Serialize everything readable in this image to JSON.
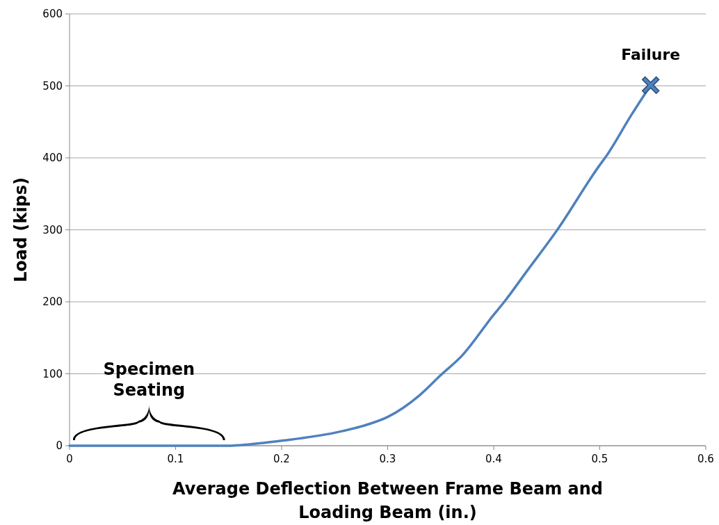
{
  "chart_data": {
    "type": "line",
    "xlabel": "Average Deflection Between Frame Beam and Loading Beam (in.)",
    "ylabel": "Load (kips)",
    "xlim": [
      0,
      0.6
    ],
    "xticks": [
      0,
      0.1,
      0.2,
      0.3,
      0.4,
      0.5,
      0.6
    ],
    "ylim": [
      0,
      600
    ],
    "yticks": [
      0,
      100,
      200,
      300,
      400,
      500,
      600
    ],
    "grid": "y",
    "marker": "none",
    "line_style": "solid",
    "series": [
      {
        "color": "#4f81bd",
        "x": [
          0,
          0.05,
          0.1,
          0.15,
          0.17,
          0.2,
          0.25,
          0.28,
          0.3,
          0.33,
          0.35,
          0.37,
          0.4,
          0.41,
          0.43,
          0.46,
          0.5,
          0.505,
          0.53,
          0.548
        ],
        "values": [
          0,
          0,
          0,
          0,
          2,
          7,
          18,
          29,
          40,
          70,
          98,
          125,
          182,
          200,
          240,
          300,
          390,
          400,
          460,
          501
        ]
      },
      {
        "type": "scatter",
        "marker": "cross",
        "color": "#4f81bd",
        "x": [
          0.548
        ],
        "values": [
          501
        ]
      }
    ],
    "annotations": [
      {
        "text": "Failure",
        "x": 0.548,
        "y": 501
      },
      {
        "text": "Specimen Seating",
        "x": 0.075,
        "y": 0
      }
    ]
  }
}
